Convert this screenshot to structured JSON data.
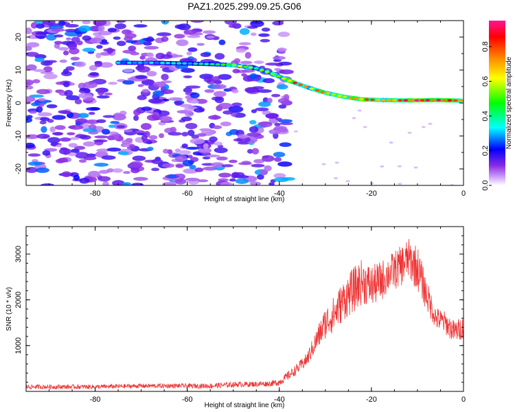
{
  "title": "PAZ1.2025.299.09.25.G06",
  "chart_data": [
    {
      "type": "heatmap",
      "name": "spectrogram",
      "xlabel": "Height of straight line (km)",
      "ylabel": "Frequency (Hz)",
      "xlim": [
        -95,
        0
      ],
      "ylim": [
        -25,
        25
      ],
      "xticks": [
        -80,
        -60,
        -40,
        -20,
        0
      ],
      "xtick_labels": [
        "-80",
        "-60",
        "-40",
        "-20",
        "0"
      ],
      "yticks": [
        -20,
        -10,
        0,
        10,
        20
      ],
      "ytick_labels": [
        "-20",
        "-10",
        "0",
        "10",
        "20"
      ],
      "colorbar": {
        "label": "Normalized spectral amplitude",
        "range": [
          0,
          0.95
        ],
        "ticks": [
          0.0,
          0.2,
          0.4,
          0.6,
          0.8
        ],
        "tick_labels": [
          "0.0",
          "0.2",
          "0.4",
          "0.6",
          "0.8"
        ],
        "colors": [
          "#ffffff",
          "#8a2be2",
          "#0000ff",
          "#00ffff",
          "#00ff00",
          "#ffff00",
          "#ff8000",
          "#ff0000",
          "#ff1493"
        ]
      },
      "ridge": {
        "x": [
          -75,
          -68,
          -60,
          -55,
          -50,
          -45,
          -42,
          -40,
          -37,
          -34,
          -30,
          -26,
          -22,
          -18,
          -14,
          -10,
          -6,
          -3,
          0
        ],
        "freq": [
          12.2,
          12.2,
          12.0,
          11.8,
          11.5,
          10.5,
          9.2,
          8.0,
          6.3,
          4.8,
          3.1,
          1.9,
          1.1,
          0.9,
          0.8,
          0.8,
          0.9,
          0.8,
          0.7
        ],
        "amplitude": [
          0.3,
          0.3,
          0.35,
          0.35,
          0.55,
          0.45,
          0.5,
          0.55,
          0.8,
          0.6,
          0.7,
          0.65,
          0.8,
          0.6,
          0.7,
          0.9,
          0.85,
          0.8,
          0.6
        ]
      },
      "noise_region": {
        "x_from": -95,
        "x_to": -40,
        "amplitude": [
          0.05,
          0.3
        ]
      }
    },
    {
      "type": "line",
      "name": "snr",
      "xlabel": "Height of straight line (km)",
      "ylabel": "SNR (10 * v/v)",
      "xlim": [
        -95,
        0
      ],
      "ylim": [
        0,
        3600
      ],
      "xticks": [
        -80,
        -60,
        -40,
        -20,
        0
      ],
      "xtick_labels": [
        "-80",
        "-60",
        "-40",
        "-20",
        "0"
      ],
      "yticks": [
        1000,
        2000,
        3000
      ],
      "ytick_labels": [
        "1000",
        "2000",
        "3000"
      ],
      "color": "#ee3333",
      "series": [
        {
          "name": "SNR",
          "x": [
            -95,
            -90,
            -85,
            -80,
            -75,
            -70,
            -65,
            -60,
            -55,
            -50,
            -45,
            -42,
            -40,
            -38,
            -36,
            -34,
            -32,
            -30,
            -28,
            -26,
            -24,
            -22,
            -20,
            -18,
            -16,
            -14,
            -12,
            -10,
            -8,
            -6,
            -4,
            -2,
            0
          ],
          "y": [
            100,
            100,
            100,
            100,
            110,
            120,
            120,
            120,
            120,
            150,
            160,
            170,
            200,
            350,
            500,
            700,
            1100,
            1500,
            1700,
            2000,
            2200,
            2400,
            2300,
            2400,
            2600,
            2700,
            2900,
            2700,
            2100,
            1600,
            1500,
            1300,
            1400
          ],
          "noise": [
            50,
            50,
            50,
            50,
            50,
            50,
            50,
            50,
            60,
            60,
            60,
            60,
            80,
            100,
            120,
            150,
            250,
            350,
            400,
            450,
            500,
            500,
            450,
            450,
            400,
            450,
            450,
            500,
            350,
            250,
            250,
            250,
            250
          ]
        }
      ]
    }
  ]
}
